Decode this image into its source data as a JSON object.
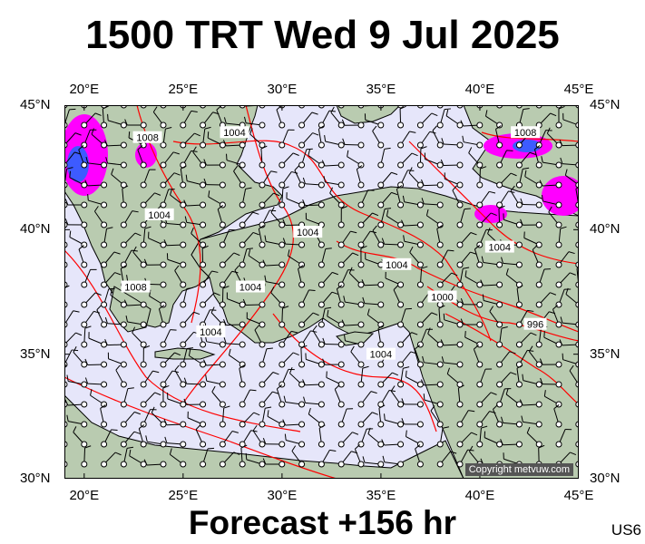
{
  "header": {
    "title": "1500 TRT Wed 9 Jul 2025"
  },
  "footer": {
    "forecast": "Forecast +156 hr",
    "code": "US6"
  },
  "map": {
    "copyright": "Copyright metvuw.com",
    "lon_ticks": [
      {
        "value": 20,
        "label": "20°E"
      },
      {
        "value": 25,
        "label": "25°E"
      },
      {
        "value": 30,
        "label": "30°E"
      },
      {
        "value": 35,
        "label": "35°E"
      },
      {
        "value": 40,
        "label": "40°E"
      },
      {
        "value": 45,
        "label": "45°E"
      }
    ],
    "lat_ticks": [
      {
        "value": 45,
        "label": "45°N"
      },
      {
        "value": 40,
        "label": "40°N"
      },
      {
        "value": 35,
        "label": "35°N"
      },
      {
        "value": 30,
        "label": "30°N"
      }
    ],
    "extent": {
      "lon": [
        19,
        45
      ],
      "lat": [
        30,
        45
      ]
    },
    "colors": {
      "sea": "#e6e6fa",
      "land": "#b9cbb0",
      "isobar": "#ff0000",
      "coast": "#000000",
      "rain": "#ff00ff",
      "rain_heavy": "#3d5bff"
    },
    "isobar_labels": [
      {
        "text": "1008",
        "lon": 23.2,
        "lat": 43.7
      },
      {
        "text": "1004",
        "lon": 27.6,
        "lat": 43.9
      },
      {
        "text": "1008",
        "lon": 42.3,
        "lat": 43.9
      },
      {
        "text": "1004",
        "lon": 23.8,
        "lat": 40.6
      },
      {
        "text": "1004",
        "lon": 31.3,
        "lat": 39.9
      },
      {
        "text": "1004",
        "lon": 41.0,
        "lat": 39.3
      },
      {
        "text": "1004",
        "lon": 35.8,
        "lat": 38.6
      },
      {
        "text": "1008",
        "lon": 22.6,
        "lat": 37.7
      },
      {
        "text": "1004",
        "lon": 28.4,
        "lat": 37.7
      },
      {
        "text": "1000",
        "lon": 38.1,
        "lat": 37.3
      },
      {
        "text": "996",
        "lon": 42.8,
        "lat": 36.2
      },
      {
        "text": "1004",
        "lon": 26.4,
        "lat": 35.9
      },
      {
        "text": "1004",
        "lon": 35.0,
        "lat": 35.0
      }
    ]
  }
}
